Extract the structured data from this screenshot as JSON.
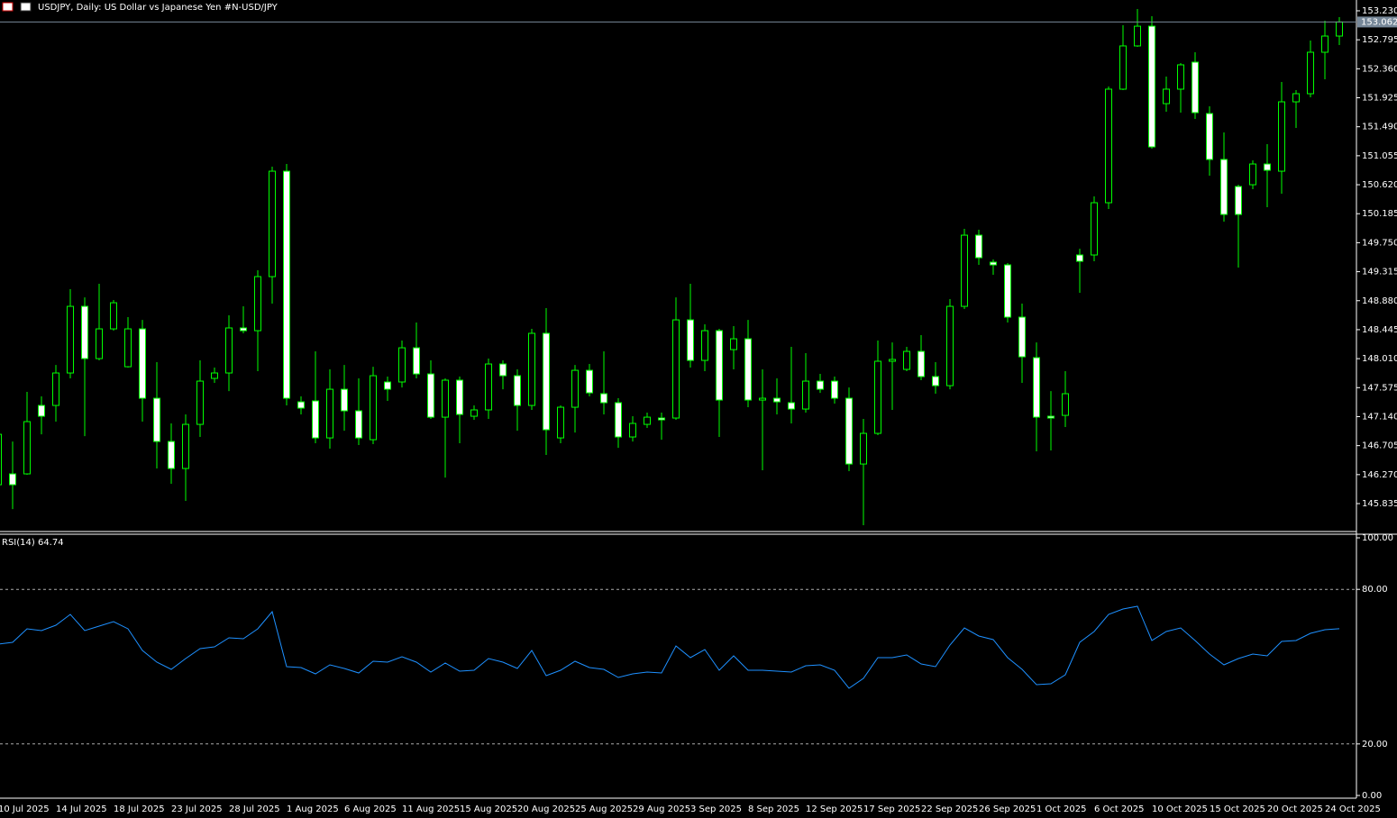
{
  "chart_data": [
    {
      "type": "candlestick",
      "title": "USDJPY, Daily:  US Dollar vs  Japanese Yen #N-USD/JPY",
      "categories": [
        "10 Jul 2025",
        null,
        null,
        null,
        "14 Jul 2025",
        null,
        null,
        null,
        "18 Jul 2025",
        null,
        null,
        null,
        "23 Jul 2025",
        null,
        null,
        null,
        "28 Jul 2025",
        null,
        null,
        null,
        "1 Aug 2025",
        null,
        null,
        null,
        "6 Aug 2025",
        null,
        null,
        null,
        "11 Aug 2025",
        null,
        null,
        null,
        "15 Aug 2025",
        null,
        null,
        null,
        "20 Aug 2025",
        null,
        null,
        null,
        "25 Aug 2025",
        null,
        null,
        null,
        "29 Aug 2025",
        null,
        null,
        null,
        "3 Sep 2025",
        null,
        null,
        null,
        "8 Sep 2025",
        null,
        null,
        null,
        "12 Sep 2025",
        null,
        null,
        null,
        "17 Sep 2025",
        null,
        null,
        null,
        "22 Sep 2025",
        null,
        null,
        null,
        "26 Sep 2025",
        null,
        null,
        null,
        "1 Oct 2025",
        null,
        null,
        null,
        "6 Oct 2025",
        null,
        null,
        null,
        "10 Oct 2025",
        null,
        null,
        null,
        "15 Oct 2025",
        null,
        null,
        null,
        "20 Oct 2025",
        null,
        null,
        null,
        "24 Oct 2025",
        null
      ],
      "open": [
        146.118,
        146.281,
        146.281,
        147.308,
        147.308,
        147.795,
        148.795,
        148.011,
        148.457,
        147.889,
        148.457,
        147.416,
        146.767,
        146.362,
        147.024,
        147.714,
        147.795,
        148.471,
        148.43,
        149.241,
        150.823,
        147.362,
        147.376,
        146.821,
        147.551,
        147.227,
        146.794,
        147.66,
        147.66,
        148.173,
        147.781,
        147.132,
        147.687,
        147.146,
        147.241,
        147.93,
        147.754,
        147.308,
        148.39,
        146.821,
        147.281,
        147.835,
        147.484,
        147.349,
        146.835,
        147.024,
        147.119,
        147.119,
        148.592,
        147.984,
        148.43,
        148.146,
        148.308,
        147.389,
        147.416,
        147.349,
        147.254,
        147.673,
        147.673,
        147.416,
        146.429,
        146.889,
        147.971,
        147.849,
        148.119,
        147.741,
        147.605,
        148.795,
        149.863,
        149.458,
        149.417,
        148.633,
        148.025,
        147.146,
        147.159,
        149.566,
        149.566,
        150.35,
        152.054,
        152.703,
        152.999,
        151.837,
        152.054,
        152.459,
        151.688,
        150.999,
        150.593,
        150.62,
        150.931,
        150.823,
        151.864,
        151.986,
        152.608,
        152.851
      ],
      "high": [
        146.902,
        146.767,
        147.511,
        147.443,
        147.916,
        149.052,
        148.93,
        149.133,
        148.89,
        148.633,
        148.592,
        147.957,
        147.038,
        147.173,
        147.984,
        147.876,
        148.66,
        148.795,
        149.336,
        150.891,
        150.931,
        147.443,
        148.119,
        147.849,
        147.916,
        147.714,
        147.889,
        147.741,
        148.282,
        148.552,
        147.984,
        147.714,
        147.741,
        147.308,
        148.011,
        147.984,
        147.849,
        148.457,
        148.768,
        147.308,
        147.916,
        147.93,
        148.119,
        147.416,
        147.146,
        147.2,
        147.2,
        148.93,
        149.133,
        148.525,
        148.457,
        148.498,
        148.592,
        147.849,
        147.714,
        148.187,
        148.092,
        147.781,
        147.741,
        147.578,
        147.105,
        148.282,
        148.254,
        148.187,
        148.363,
        147.957,
        148.903,
        149.958,
        149.944,
        149.498,
        149.444,
        148.836,
        148.254,
        147.524,
        147.822,
        149.66,
        150.445,
        152.094,
        153.013,
        153.257,
        153.149,
        152.243,
        152.446,
        152.608,
        151.797,
        151.405,
        150.62,
        150.985,
        151.229,
        152.162,
        152.04,
        152.784,
        153.081,
        153.135
      ],
      "low": [
        146.091,
        145.753,
        146.267,
        146.875,
        147.065,
        147.714,
        146.848,
        147.984,
        148.43,
        147.876,
        147.065,
        146.362,
        146.132,
        145.875,
        146.835,
        147.646,
        147.524,
        148.39,
        147.822,
        148.836,
        147.308,
        147.173,
        146.74,
        146.659,
        146.929,
        146.713,
        146.727,
        147.376,
        147.578,
        147.714,
        147.105,
        146.226,
        146.74,
        147.092,
        147.105,
        147.551,
        146.929,
        147.241,
        146.565,
        146.74,
        146.902,
        147.443,
        147.173,
        146.672,
        146.767,
        146.97,
        146.794,
        147.092,
        147.876,
        147.822,
        146.835,
        147.849,
        147.281,
        146.335,
        147.173,
        147.038,
        147.2,
        147.497,
        147.335,
        146.322,
        145.51,
        146.862,
        147.241,
        147.822,
        147.687,
        147.484,
        147.551,
        148.755,
        149.417,
        149.268,
        148.552,
        147.646,
        146.619,
        146.632,
        146.984,
        148.998,
        149.471,
        150.255,
        152.04,
        152.689,
        151.161,
        151.716,
        151.702,
        151.607,
        150.756,
        150.066,
        149.377,
        150.553,
        150.282,
        150.485,
        151.472,
        151.932,
        152.202,
        152.716
      ],
      "close": [
        146.875,
        146.118,
        147.065,
        147.146,
        147.795,
        148.795,
        148.011,
        148.457,
        148.849,
        148.457,
        147.416,
        146.767,
        146.362,
        147.024,
        147.673,
        147.795,
        148.471,
        148.43,
        149.241,
        150.823,
        147.416,
        147.268,
        146.821,
        147.551,
        147.227,
        146.821,
        147.754,
        147.551,
        148.173,
        147.781,
        147.132,
        147.687,
        147.173,
        147.241,
        147.93,
        147.754,
        147.308,
        148.39,
        146.943,
        147.281,
        147.835,
        147.497,
        147.349,
        146.835,
        147.038,
        147.132,
        147.092,
        148.592,
        147.984,
        148.43,
        147.389,
        148.308,
        147.389,
        147.416,
        147.362,
        147.254,
        147.673,
        147.551,
        147.416,
        146.429,
        146.889,
        147.971,
        147.998,
        148.119,
        147.741,
        147.605,
        148.795,
        149.863,
        149.525,
        149.417,
        148.633,
        148.038,
        147.132,
        147.119,
        147.484,
        149.471,
        150.35,
        152.054,
        152.703,
        152.999,
        151.188,
        152.054,
        152.419,
        151.702,
        150.999,
        150.174,
        150.174,
        150.931,
        150.837,
        151.864,
        151.986,
        152.608,
        152.851,
        153.062
      ],
      "colors": {
        "up": "#000000",
        "down": "#ffffff",
        "wick": "#00ff00"
      },
      "current_price": 153.062,
      "ylim": [
        145.416,
        153.392
      ],
      "yticks": [
        {
          "value": 153.23,
          "label": "153.230"
        },
        {
          "value": 152.795,
          "label": "152.795"
        },
        {
          "value": 152.36,
          "label": "152.360"
        },
        {
          "value": 151.925,
          "label": "151.925"
        },
        {
          "value": 151.49,
          "label": "151.490"
        },
        {
          "value": 151.055,
          "label": "151.055"
        },
        {
          "value": 150.62,
          "label": "150.620"
        },
        {
          "value": 150.185,
          "label": "150.185"
        },
        {
          "value": 149.75,
          "label": "149.750"
        },
        {
          "value": 149.315,
          "label": "149.315"
        },
        {
          "value": 148.88,
          "label": "148.880"
        },
        {
          "value": 148.445,
          "label": "148.445"
        },
        {
          "value": 148.01,
          "label": "148.010"
        },
        {
          "value": 147.575,
          "label": "147.575"
        },
        {
          "value": 147.14,
          "label": "147.140"
        },
        {
          "value": 146.705,
          "label": "146.705"
        },
        {
          "value": 146.27,
          "label": "146.270"
        },
        {
          "value": 145.835,
          "label": "145.835"
        }
      ]
    },
    {
      "type": "line",
      "title": "RSI(14) 64.74",
      "color": "#1e90ff",
      "values": [
        58.74,
        59.44,
        64.69,
        63.99,
        66.08,
        70.28,
        63.99,
        65.73,
        67.48,
        64.69,
        56.29,
        51.75,
        48.95,
        53.15,
        56.99,
        57.69,
        61.19,
        60.84,
        64.69,
        71.33,
        50,
        49.65,
        47.2,
        50.7,
        49.3,
        47.55,
        52.1,
        51.75,
        53.85,
        51.75,
        47.9,
        51.4,
        48.25,
        48.6,
        53.15,
        51.75,
        49.3,
        56.29,
        46.5,
        48.6,
        52.1,
        49.65,
        48.95,
        45.8,
        47.2,
        47.9,
        47.55,
        58.04,
        53.5,
        56.64,
        48.6,
        54.2,
        48.6,
        48.6,
        48.25,
        47.9,
        50.35,
        50.7,
        48.6,
        41.61,
        45.45,
        53.5,
        53.5,
        54.55,
        51.05,
        50,
        58.39,
        65.03,
        61.89,
        60.49,
        53.5,
        48.95,
        43.01,
        43.36,
        46.85,
        59.44,
        63.64,
        70.28,
        72.38,
        73.43,
        60.14,
        63.64,
        65.03,
        60.14,
        54.9,
        50.7,
        53.15,
        54.9,
        54.2,
        59.79,
        60.14,
        62.94,
        64.34,
        64.74
      ],
      "ylim": [
        0,
        100
      ],
      "yticks": [
        {
          "value": 100,
          "label": "100.00"
        },
        {
          "value": 80,
          "label": "80.00"
        },
        {
          "value": 20,
          "label": "20.00"
        },
        {
          "value": 0,
          "label": "0.00"
        }
      ],
      "levels": [
        80,
        20
      ]
    }
  ]
}
